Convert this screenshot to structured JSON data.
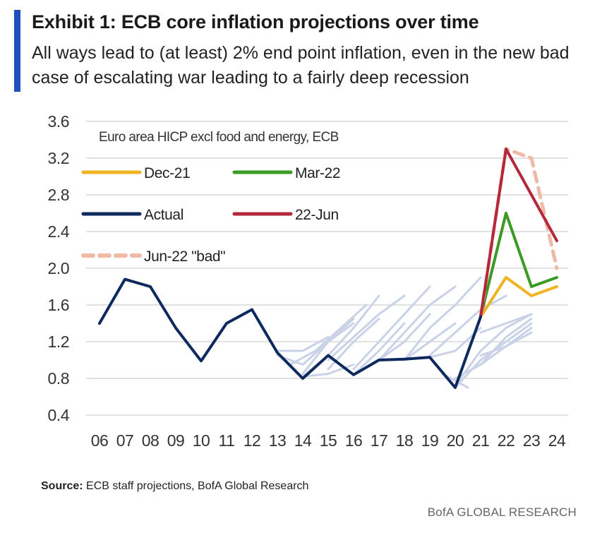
{
  "header": {
    "title": "Exhibit 1: ECB core inflation projections over time",
    "subtitle": "All ways lead to (at least) 2% end point inflation, even in the new bad case of escalating war leading to a fairly deep recession"
  },
  "source": {
    "label": "Source:",
    "text": "ECB staff projections, BofA Global Research"
  },
  "footer": {
    "brand": "BofA GLOBAL RESEARCH"
  },
  "chart_data": {
    "type": "line",
    "annotation": "Euro area HICP excl food and energy, ECB",
    "x_ticks": [
      "06",
      "07",
      "08",
      "09",
      "10",
      "11",
      "12",
      "13",
      "14",
      "15",
      "16",
      "17",
      "18",
      "19",
      "20",
      "21",
      "22",
      "23",
      "24"
    ],
    "y_ticks": [
      "3.6",
      "3.2",
      "2.8",
      "2.4",
      "2.0",
      "1.6",
      "1.2",
      "0.8",
      "0.4"
    ],
    "ylim": [
      0.4,
      3.6
    ],
    "xlim": [
      2006,
      2024
    ],
    "grid": "horizontal",
    "legend_position": "top-left",
    "series": [
      {
        "name": "Actual",
        "color": "#0d2a5e",
        "style": "solid",
        "x": [
          2006,
          2007,
          2008,
          2009,
          2010,
          2011,
          2012,
          2013,
          2014,
          2015,
          2016,
          2017,
          2018,
          2019,
          2020,
          2021
        ],
        "values": [
          1.4,
          1.88,
          1.8,
          1.35,
          0.99,
          1.4,
          1.55,
          1.08,
          0.8,
          1.05,
          0.84,
          1.0,
          1.01,
          1.03,
          0.7,
          1.47
        ]
      },
      {
        "name": "Dec-21",
        "color": "#f0b323",
        "style": "solid",
        "x": [
          2021,
          2022,
          2023,
          2024
        ],
        "values": [
          1.47,
          1.9,
          1.7,
          1.8
        ]
      },
      {
        "name": "Mar-22",
        "color": "#3a9a24",
        "style": "solid",
        "x": [
          2021,
          2022,
          2023,
          2024
        ],
        "values": [
          1.47,
          2.6,
          1.8,
          1.9
        ]
      },
      {
        "name": "22-Jun",
        "color": "#b5283c",
        "style": "solid",
        "x": [
          2021,
          2022,
          2024
        ],
        "values": [
          1.47,
          3.3,
          2.3
        ]
      },
      {
        "name": "Jun-22 \"bad\"",
        "color": "#f0b9a6",
        "style": "dashed",
        "x": [
          2021,
          2022,
          2023,
          2024
        ],
        "values": [
          1.47,
          3.3,
          3.2,
          2.0
        ]
      }
    ],
    "historical_projection_lines": [
      {
        "x": [
          2013,
          2014,
          2015
        ],
        "values": [
          1.1,
          1.1,
          1.25
        ]
      },
      {
        "x": [
          2013,
          2014,
          2015,
          2016
        ],
        "values": [
          1.05,
          0.95,
          1.2,
          1.45
        ]
      },
      {
        "x": [
          2013.5,
          2014.5,
          2015.5,
          2016.5
        ],
        "values": [
          0.95,
          1.1,
          1.35,
          1.6
        ]
      },
      {
        "x": [
          2014,
          2015,
          2016
        ],
        "values": [
          0.85,
          1.2,
          1.4
        ]
      },
      {
        "x": [
          2014,
          2015,
          2016,
          2017
        ],
        "values": [
          0.82,
          1.05,
          1.35,
          1.7
        ]
      },
      {
        "x": [
          2014,
          2015,
          2016
        ],
        "values": [
          0.82,
          0.85,
          0.95
        ]
      },
      {
        "x": [
          2015,
          2016,
          2017,
          2018
        ],
        "values": [
          1.0,
          1.25,
          1.5,
          1.7
        ]
      },
      {
        "x": [
          2015,
          2016,
          2017
        ],
        "values": [
          0.9,
          1.2,
          1.45
        ]
      },
      {
        "x": [
          2016,
          2017,
          2018,
          2019
        ],
        "values": [
          0.9,
          1.2,
          1.5,
          1.8
        ]
      },
      {
        "x": [
          2016,
          2017,
          2018
        ],
        "values": [
          0.84,
          1.1,
          1.4
        ]
      },
      {
        "x": [
          2017,
          2018,
          2019,
          2020
        ],
        "values": [
          1.0,
          1.3,
          1.6,
          1.8
        ]
      },
      {
        "x": [
          2017,
          2018,
          2019
        ],
        "values": [
          1.0,
          1.2,
          1.5
        ]
      },
      {
        "x": [
          2018,
          2019,
          2020,
          2021
        ],
        "values": [
          1.0,
          1.35,
          1.6,
          1.9
        ]
      },
      {
        "x": [
          2018,
          2019,
          2020
        ],
        "values": [
          1.0,
          1.2,
          1.4
        ]
      },
      {
        "x": [
          2019,
          2020,
          2021,
          2022
        ],
        "values": [
          1.05,
          1.3,
          1.55,
          1.7
        ]
      },
      {
        "x": [
          2019,
          2020,
          2021
        ],
        "values": [
          1.03,
          1.1,
          1.35
        ]
      },
      {
        "x": [
          2020,
          2021,
          2022,
          2023
        ],
        "values": [
          0.8,
          0.95,
          1.15,
          1.35
        ]
      },
      {
        "x": [
          2020,
          2021,
          2022,
          2023
        ],
        "values": [
          0.7,
          1.0,
          1.2,
          1.4
        ]
      },
      {
        "x": [
          2020,
          2021,
          2022,
          2023
        ],
        "values": [
          0.72,
          1.1,
          1.35,
          1.5
        ]
      },
      {
        "x": [
          2019.5,
          2020.5
        ],
        "values": [
          0.85,
          0.7
        ]
      },
      {
        "x": [
          2021,
          2022,
          2023
        ],
        "values": [
          1.3,
          1.4,
          1.5
        ]
      },
      {
        "x": [
          2021,
          2022,
          2023
        ],
        "values": [
          1.05,
          1.15,
          1.3
        ]
      },
      {
        "x": [
          2021,
          2022,
          2023
        ],
        "values": [
          0.95,
          1.25,
          1.45
        ]
      }
    ]
  }
}
